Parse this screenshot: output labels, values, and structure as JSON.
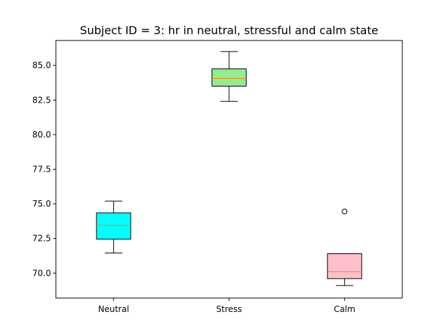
{
  "chart_data": {
    "type": "box",
    "title": "Subject ID = 3: hr in neutral, stressful and calm state",
    "xlabel": "",
    "ylabel": "",
    "categories": [
      "Neutral",
      "Stress",
      "Calm"
    ],
    "ylim": [
      68.2,
      86.8
    ],
    "yticks": [
      70.0,
      72.5,
      75.0,
      77.5,
      80.0,
      82.5,
      85.0
    ],
    "ytick_labels": [
      "70.0",
      "72.5",
      "75.0",
      "77.5",
      "80.0",
      "82.5",
      "85.0"
    ],
    "boxes": [
      {
        "name": "Neutral",
        "whisker_low": 71.45,
        "q1": 72.45,
        "median": 73.45,
        "q3": 74.35,
        "whisker_high": 75.2,
        "outliers": [],
        "color": "#00ffff"
      },
      {
        "name": "Stress",
        "whisker_low": 82.4,
        "q1": 83.5,
        "median": 84.05,
        "q3": 84.75,
        "whisker_high": 86.0,
        "outliers": [],
        "color": "#90ee90"
      },
      {
        "name": "Calm",
        "whisker_low": 69.1,
        "q1": 69.6,
        "median": 70.1,
        "q3": 71.4,
        "whisker_high": 71.4,
        "outliers": [
          74.45
        ],
        "color": "#ffc0cb"
      }
    ],
    "median_color": "#ff7f0e",
    "grid": false
  }
}
